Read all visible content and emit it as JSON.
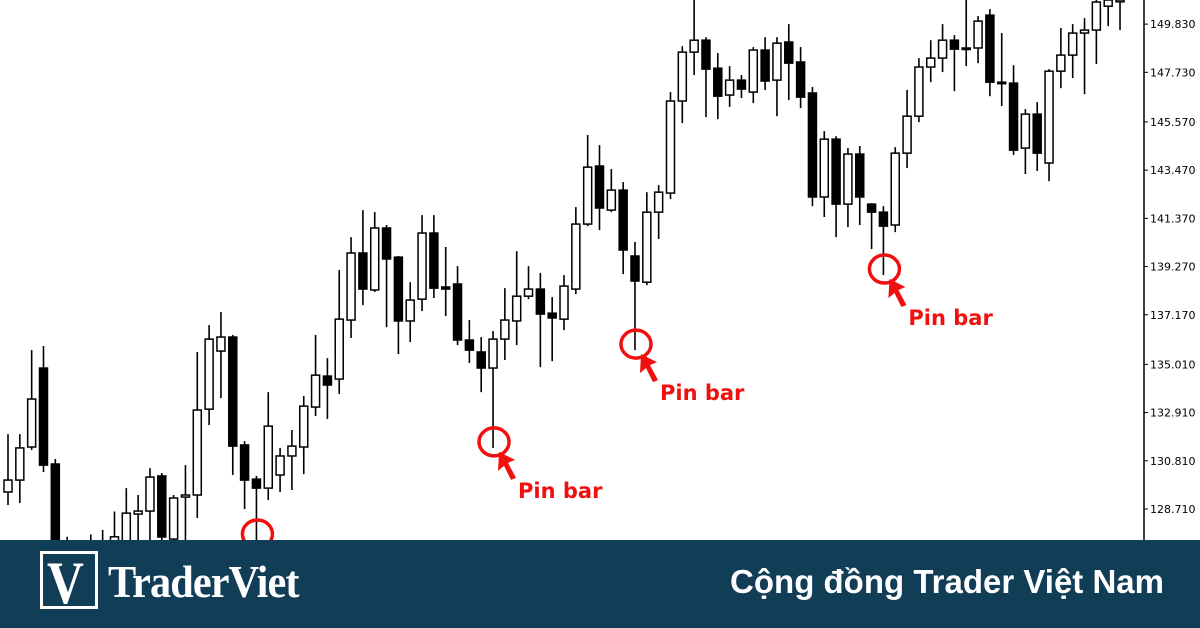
{
  "chart_data": {
    "type": "candlestick",
    "title": "",
    "xlabel": "",
    "ylabel": "",
    "ylim": [
      127.36,
      150.88
    ],
    "grid": false,
    "yticks": [
      "149.830",
      "147.730",
      "145.570",
      "143.470",
      "141.370",
      "139.270",
      "137.170",
      "135.010",
      "132.910",
      "130.810",
      "128.710"
    ],
    "colors": {
      "up_fill": "#ffffff",
      "down_fill": "#000000",
      "outline": "#000000",
      "annotation": "#f01010"
    },
    "candles": [
      [
        129.45,
        131.97,
        128.88,
        129.97
      ],
      [
        129.97,
        131.97,
        128.97,
        131.37
      ],
      [
        131.41,
        135.63,
        131.28,
        133.5
      ],
      [
        134.85,
        135.81,
        130.32,
        130.62
      ],
      [
        130.67,
        130.89,
        126.49,
        126.84
      ],
      [
        126.8,
        127.5,
        125.6,
        126.0
      ],
      [
        126.0,
        127.2,
        125.5,
        126.9
      ],
      [
        126.9,
        127.6,
        125.8,
        126.2
      ],
      [
        126.2,
        127.8,
        125.9,
        127.3
      ],
      [
        127.0,
        128.6,
        126.5,
        127.5
      ],
      [
        127.0,
        129.62,
        126.6,
        128.53
      ],
      [
        128.49,
        129.32,
        126.9,
        128.62
      ],
      [
        128.62,
        130.49,
        127.0,
        130.1
      ],
      [
        130.15,
        130.28,
        126.9,
        127.49
      ],
      [
        127.4,
        129.32,
        127.0,
        129.19
      ],
      [
        129.23,
        130.62,
        127.2,
        129.32
      ],
      [
        129.32,
        135.55,
        128.32,
        133.02
      ],
      [
        133.06,
        136.72,
        132.37,
        136.11
      ],
      [
        135.59,
        137.29,
        133.54,
        136.2
      ],
      [
        136.2,
        136.29,
        130.19,
        131.45
      ],
      [
        131.5,
        131.67,
        128.71,
        129.97
      ],
      [
        130.01,
        130.15,
        127.36,
        129.62
      ],
      [
        129.62,
        133.8,
        129.1,
        132.32
      ],
      [
        130.19,
        131.37,
        129.45,
        131.02
      ],
      [
        131.02,
        132.15,
        129.54,
        131.45
      ],
      [
        131.41,
        133.63,
        130.23,
        133.19
      ],
      [
        133.15,
        136.29,
        132.76,
        134.54
      ],
      [
        134.5,
        135.28,
        132.63,
        134.11
      ],
      [
        134.37,
        139.12,
        133.72,
        136.98
      ],
      [
        136.94,
        140.55,
        136.16,
        139.86
      ],
      [
        139.86,
        141.73,
        137.59,
        138.29
      ],
      [
        138.25,
        141.64,
        138.16,
        140.95
      ],
      [
        140.95,
        141.08,
        136.63,
        139.6
      ],
      [
        139.68,
        139.73,
        135.46,
        136.9
      ],
      [
        136.9,
        138.59,
        135.98,
        137.81
      ],
      [
        137.85,
        141.51,
        137.33,
        140.73
      ],
      [
        140.73,
        141.51,
        137.9,
        138.33
      ],
      [
        138.38,
        140.12,
        137.11,
        138.29
      ],
      [
        138.51,
        139.29,
        135.85,
        136.07
      ],
      [
        136.07,
        136.94,
        135.07,
        135.63
      ],
      [
        135.55,
        136.2,
        133.8,
        134.85
      ],
      [
        134.85,
        136.46,
        131.37,
        136.11
      ],
      [
        136.11,
        138.33,
        135.2,
        136.94
      ],
      [
        136.9,
        139.94,
        135.85,
        137.98
      ],
      [
        137.98,
        139.29,
        137.85,
        138.29
      ],
      [
        138.29,
        138.99,
        134.89,
        137.2
      ],
      [
        137.24,
        137.94,
        135.15,
        137.03
      ],
      [
        136.98,
        138.9,
        136.5,
        138.42
      ],
      [
        138.29,
        141.86,
        138.07,
        141.12
      ],
      [
        141.12,
        145.0,
        141.03,
        143.6
      ],
      [
        143.65,
        144.56,
        140.86,
        141.82
      ],
      [
        141.73,
        143.52,
        141.64,
        142.6
      ],
      [
        142.6,
        142.95,
        138.94,
        139.99
      ],
      [
        139.73,
        140.34,
        135.63,
        138.64
      ],
      [
        138.59,
        142.51,
        138.46,
        141.64
      ],
      [
        141.64,
        142.82,
        140.47,
        142.51
      ],
      [
        142.47,
        146.87,
        142.21,
        146.48
      ],
      [
        146.48,
        148.87,
        145.52,
        148.61
      ],
      [
        148.61,
        151.0,
        147.61,
        149.13
      ],
      [
        149.13,
        149.26,
        145.78,
        147.87
      ],
      [
        147.91,
        148.57,
        145.69,
        146.69
      ],
      [
        146.74,
        148.0,
        146.22,
        147.39
      ],
      [
        147.39,
        147.61,
        146.61,
        147.0
      ],
      [
        146.87,
        148.83,
        146.39,
        148.7
      ],
      [
        148.7,
        149.26,
        146.96,
        147.35
      ],
      [
        147.39,
        149.26,
        145.82,
        149.0
      ],
      [
        149.05,
        149.83,
        146.52,
        148.13
      ],
      [
        148.18,
        148.83,
        146.17,
        146.65
      ],
      [
        146.83,
        147.09,
        141.9,
        142.3
      ],
      [
        142.3,
        145.17,
        141.43,
        144.82
      ],
      [
        144.82,
        144.95,
        140.55,
        141.99
      ],
      [
        141.99,
        144.43,
        140.99,
        144.17
      ],
      [
        144.17,
        144.52,
        141.08,
        142.3
      ],
      [
        141.99,
        142.03,
        140.03,
        141.64
      ],
      [
        141.64,
        141.9,
        138.9,
        141.03
      ],
      [
        141.08,
        144.47,
        140.77,
        144.21
      ],
      [
        144.21,
        146.96,
        143.56,
        145.82
      ],
      [
        145.82,
        148.35,
        145.56,
        147.96
      ],
      [
        147.96,
        149.13,
        147.3,
        148.35
      ],
      [
        148.35,
        149.83,
        147.74,
        149.13
      ],
      [
        149.13,
        149.35,
        146.91,
        148.74
      ],
      [
        148.79,
        151.0,
        148.0,
        148.74
      ],
      [
        148.79,
        150.18,
        148.13,
        149.96
      ],
      [
        150.22,
        150.48,
        146.69,
        147.3
      ],
      [
        147.3,
        149.44,
        146.26,
        147.26
      ],
      [
        147.26,
        148.04,
        144.13,
        144.34
      ],
      [
        144.43,
        146.13,
        143.3,
        145.91
      ],
      [
        145.91,
        146.43,
        143.43,
        144.21
      ],
      [
        143.78,
        147.87,
        142.99,
        147.78
      ],
      [
        147.78,
        149.66,
        147.04,
        148.48
      ],
      [
        148.48,
        149.83,
        147.48,
        149.44
      ],
      [
        149.44,
        150.09,
        146.78,
        149.57
      ],
      [
        149.57,
        151.0,
        148.09,
        150.79
      ],
      [
        150.61,
        151.0,
        149.74,
        150.88
      ],
      [
        150.8,
        151.0,
        149.57,
        150.88
      ]
    ],
    "annotations": [
      {
        "candle": 21,
        "price": 127.36,
        "text": ""
      },
      {
        "candle": 41,
        "price": 131.37,
        "text": "Pin bar"
      },
      {
        "candle": 53,
        "price": 135.63,
        "text": "Pin bar"
      },
      {
        "candle": 74,
        "price": 138.9,
        "text": "Pin bar"
      }
    ]
  },
  "banner": {
    "logo_text": "TraderViet",
    "logo_mark": "V",
    "tagline": "Cộng đồng Trader Việt Nam",
    "background": "#123d56"
  }
}
